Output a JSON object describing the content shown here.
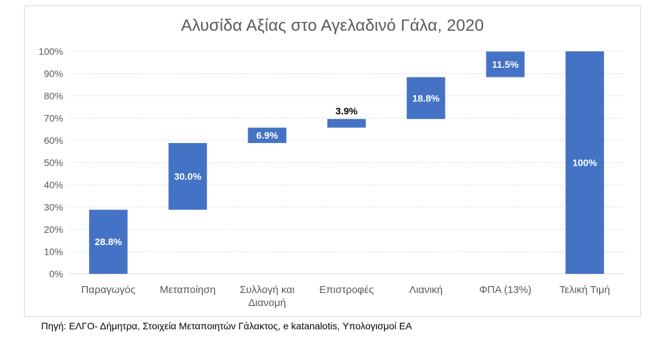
{
  "chart_data": {
    "type": "bar",
    "subtype": "waterfall",
    "title": "Αλυσίδα Αξίας στο Αγελαδινό Γάλα, 2020",
    "xlabel": "",
    "ylabel": "",
    "ylim": [
      0,
      100
    ],
    "y_ticks": [
      "0%",
      "10%",
      "20%",
      "30%",
      "40%",
      "50%",
      "60%",
      "70%",
      "80%",
      "90%",
      "100%"
    ],
    "grid": true,
    "categories": [
      [
        "Παραγωγός"
      ],
      [
        "Μεταποίηση"
      ],
      [
        "Συλλογή και",
        "Διανομή"
      ],
      [
        "Επιστροφές"
      ],
      [
        "Λιανική"
      ],
      [
        "ΦΠΑ (13%)"
      ],
      [
        "Τελική Τιμή"
      ]
    ],
    "bars": [
      {
        "base": 0,
        "value": 28.8,
        "label": "28.8%",
        "label_color": "#ffffff"
      },
      {
        "base": 28.8,
        "value": 30.0,
        "label": "30.0%",
        "label_color": "#ffffff"
      },
      {
        "base": 58.8,
        "value": 6.9,
        "label": "6.9%",
        "label_color": "#ffffff"
      },
      {
        "base": 65.7,
        "value": 3.9,
        "label": "3.9%",
        "label_color": "#000000",
        "label_above": true
      },
      {
        "base": 69.6,
        "value": 18.8,
        "label": "18.8%",
        "label_color": "#ffffff"
      },
      {
        "base": 88.4,
        "value": 11.5,
        "label": "11.5%",
        "label_color": "#ffffff"
      },
      {
        "base": 0,
        "value": 100,
        "label": "100%",
        "label_color": "#ffffff"
      }
    ],
    "bar_color": "#4472c4"
  },
  "source_note": "Πηγή: ΕΛΓΟ- Δήμητρα, Στοιχεία Μεταποιητών Γάλακτος, e katanalotis, Υπολογισμοί ΕΑ"
}
